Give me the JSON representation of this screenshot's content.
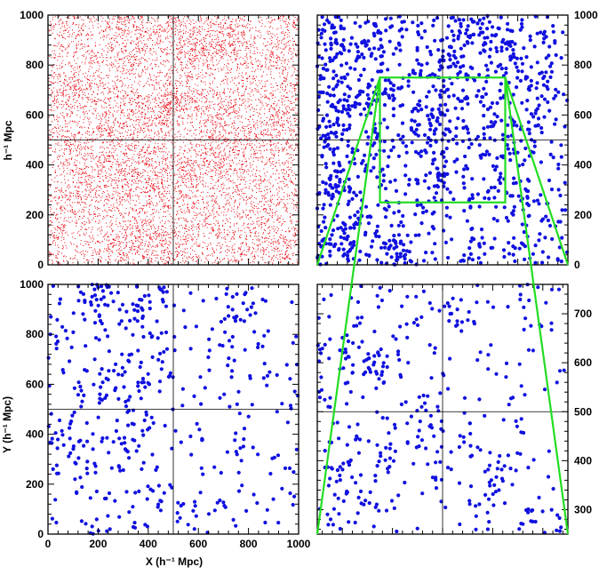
{
  "chart_data": [
    {
      "panel": "top-left",
      "type": "scatter",
      "title": "",
      "xlabel": "",
      "ylabel": "h⁻¹ Mpc",
      "xlim": [
        0,
        1000
      ],
      "ylim": [
        0,
        1000
      ],
      "x_ticks": [],
      "y_ticks": [
        "0",
        "200",
        "400",
        "600",
        "800",
        "1000"
      ],
      "y_axis_side": "left",
      "crosshair": [
        500,
        500
      ],
      "series": [
        {
          "color": "#e8000b",
          "marker": "tiny dot",
          "n_points": 9000,
          "points_note": ""
        }
      ]
    },
    {
      "panel": "top-right",
      "type": "scatter",
      "title": "",
      "xlabel": "",
      "ylabel": "",
      "xlim": [
        0,
        1000
      ],
      "ylim": [
        0,
        1000
      ],
      "x_ticks": [],
      "y_ticks": [
        "0",
        "200",
        "400",
        "600",
        "800",
        "1000"
      ],
      "y_axis_side": "right",
      "crosshair": [
        500,
        500
      ],
      "highlight_box": {
        "x": [
          250,
          750
        ],
        "y": [
          250,
          750
        ],
        "color": "#22dd22"
      },
      "series": [
        {
          "color": "#1010e0",
          "marker": "dot",
          "n_points": 1300
        }
      ]
    },
    {
      "panel": "bottom-left",
      "type": "scatter",
      "title": "",
      "xlabel": "X (h⁻¹ Mpc)",
      "ylabel": "Y (h⁻¹ Mpc)",
      "xlim": [
        0,
        1000
      ],
      "ylim": [
        0,
        1000
      ],
      "x_ticks": [
        "0",
        "200",
        "400",
        "600",
        "800",
        "1000"
      ],
      "y_ticks": [
        "0",
        "200",
        "400",
        "600",
        "800",
        "1000"
      ],
      "y_axis_side": "left",
      "crosshair": [
        500,
        500
      ],
      "series": [
        {
          "color": "#1010e0",
          "marker": "dot",
          "n_points": 500
        }
      ]
    },
    {
      "panel": "bottom-right",
      "type": "scatter",
      "title": "",
      "xlabel": "",
      "ylabel": "",
      "xlim": [
        250,
        750
      ],
      "ylim": [
        250,
        760
      ],
      "x_ticks": [],
      "y_ticks": [
        "300",
        "400",
        "500",
        "600",
        "700"
      ],
      "y_axis_side": "right",
      "crosshair": [
        500,
        500
      ],
      "series": [
        {
          "color": "#1010e0",
          "marker": "dot",
          "n_points": 420
        }
      ]
    }
  ],
  "zoom_connector": {
    "color": "#22dd22",
    "from_panel": "top-right",
    "to_panel": "bottom-right"
  },
  "colors": {
    "frame": "#000000",
    "crosshair": "#000000",
    "red_particles": "#e8000b",
    "blue_halos": "#1010e0",
    "zoom_green": "#22dd22"
  }
}
